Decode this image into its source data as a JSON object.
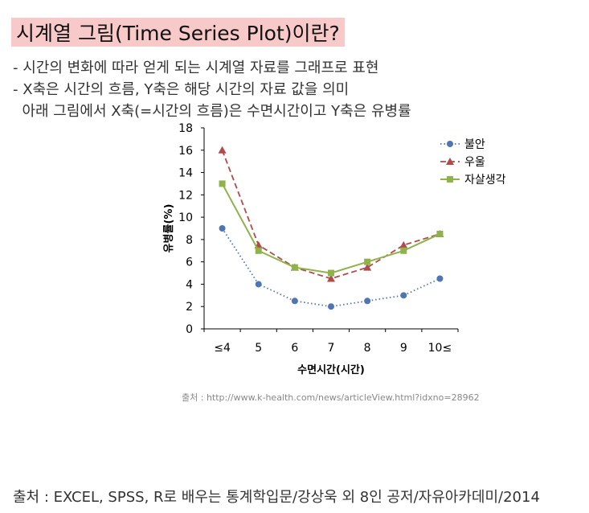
{
  "page": {
    "title": "시계열 그림(Time Series Plot)이란?",
    "bullets": [
      "- 시간의 변화에 따라 얻게 되는 시계열 자료를 그래프로 표현",
      "- X축은 시간의 흐름, Y축은 해당 시간의 자료 값을 의미",
      "  아래 그림에서 X축(=시간의 흐름)은 수면시간이고 Y축은 유병률"
    ],
    "chart_source": "출처 : http://www.k-health.com/news/articleView.html?idxno=28962",
    "footer": "출처 : EXCEL, SPSS, R로 배우는 통계학입문/강상욱 외 8인 공저/자유아카데미/2014"
  },
  "chart_data": {
    "type": "line",
    "categories": [
      "≤4",
      "5",
      "6",
      "7",
      "8",
      "9",
      "10≤"
    ],
    "xlabel": "수면시간(시간)",
    "ylabel": "유병률(%)",
    "ylim": [
      0,
      18
    ],
    "yticks": [
      0,
      2,
      4,
      6,
      8,
      10,
      12,
      14,
      16,
      18
    ],
    "grid": false,
    "legend_position": "top-right",
    "series": [
      {
        "name": "불안",
        "values": [
          9,
          4,
          2.5,
          2,
          2.5,
          3,
          4.5
        ],
        "color": "#4f76b3",
        "marker": "circle",
        "line": "dotted"
      },
      {
        "name": "우울",
        "values": [
          16,
          7.5,
          5.5,
          4.5,
          5.5,
          7.5,
          8.5
        ],
        "color": "#b14a4a",
        "marker": "triangle",
        "line": "dashed"
      },
      {
        "name": "자살생각",
        "values": [
          13,
          7,
          5.5,
          5,
          6,
          7,
          8.5
        ],
        "color": "#8fb24a",
        "marker": "square",
        "line": "solid"
      }
    ]
  }
}
